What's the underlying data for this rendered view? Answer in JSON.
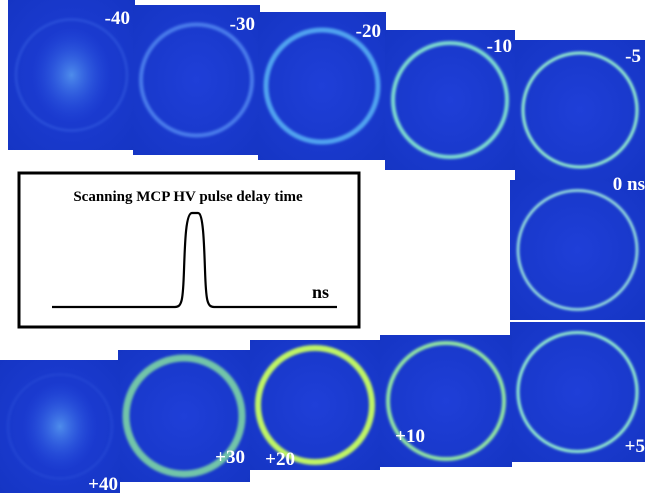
{
  "panels": [
    {
      "label": "-40"
    },
    {
      "label": "-30"
    },
    {
      "label": "-20"
    },
    {
      "label": "-10"
    },
    {
      "label": "-5"
    },
    {
      "label": "0 ns"
    },
    {
      "label": "+5"
    },
    {
      "label": "+10"
    },
    {
      "label": "+20"
    },
    {
      "label": "+30"
    },
    {
      "label": "+40"
    }
  ],
  "inset": {
    "title": "Scanning MCP HV pulse delay time",
    "axis_label": "ns"
  }
}
